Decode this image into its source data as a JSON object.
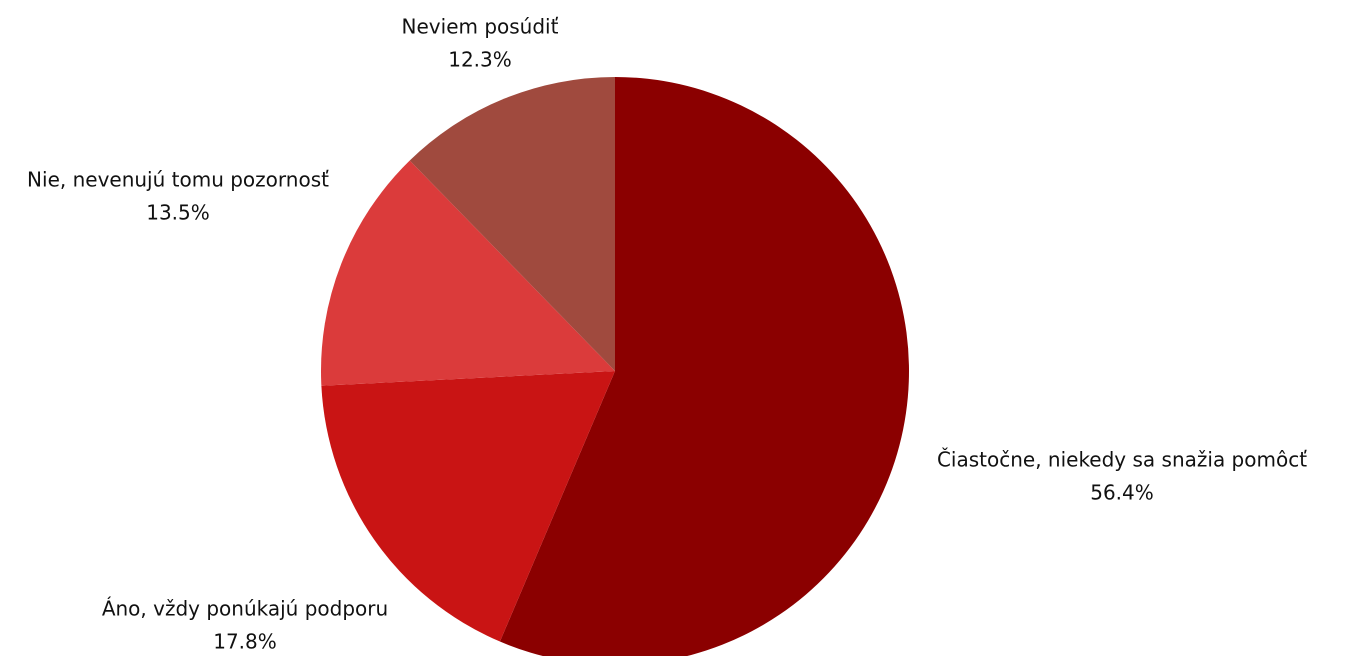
{
  "chart_data": {
    "type": "pie",
    "categories": [
      "Čiastočne, niekedy sa snažia pomôcť",
      "Áno, vždy ponúkajú podporu",
      "Nie, nevenujú tomu pozornosť",
      "Neviem posúdiť"
    ],
    "values": [
      56.4,
      17.8,
      13.5,
      12.3
    ],
    "value_labels": [
      "56.4%",
      "17.8%",
      "13.5%",
      "12.3%"
    ],
    "colors": [
      "#8b0000",
      "#c91414",
      "#db3b3b",
      "#a04a3e"
    ]
  }
}
